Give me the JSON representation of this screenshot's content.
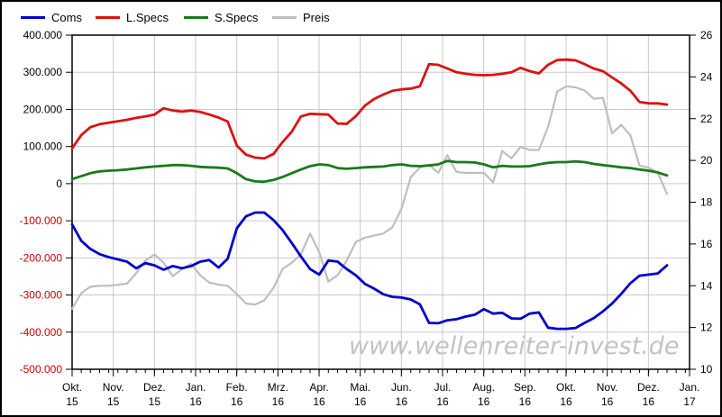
{
  "watermark": "www.wellenreiter-invest.de",
  "legend": {
    "items": [
      {
        "label": "Coms",
        "color": "#0000cd"
      },
      {
        "label": "L.Specs",
        "color": "#dd1111"
      },
      {
        "label": "S.Specs",
        "color": "#1a7a1a"
      },
      {
        "label": "Preis",
        "color": "#bebebe"
      }
    ]
  },
  "chart_data": {
    "type": "line",
    "title": "",
    "grid": true,
    "legend_position": "top",
    "left_axis": {
      "labels": [
        "400.000",
        "300.000",
        "200.000",
        "100.000",
        "0",
        "-100.000",
        "-200.000",
        "-300.000",
        "-400.000",
        "-500.000"
      ],
      "max": 400000,
      "min": -500000,
      "positive_label_color": "#000000",
      "negative_label_color": "#cc0000"
    },
    "right_axis": {
      "labels": [
        "26",
        "24",
        "22",
        "20",
        "18",
        "16",
        "14",
        "12",
        "10"
      ],
      "max": 26,
      "min": 10,
      "label_color": "#000000"
    },
    "x_axis": {
      "months": [
        {
          "month": "Okt.",
          "year": "15"
        },
        {
          "month": "Nov.",
          "year": "15"
        },
        {
          "month": "Dez.",
          "year": "15"
        },
        {
          "month": "Jan.",
          "year": "16"
        },
        {
          "month": "Feb.",
          "year": "16"
        },
        {
          "month": "Mrz.",
          "year": "16"
        },
        {
          "month": "Apr.",
          "year": "16"
        },
        {
          "month": "Mai.",
          "year": "16"
        },
        {
          "month": "Jun.",
          "year": "16"
        },
        {
          "month": "Jul.",
          "year": "16"
        },
        {
          "month": "Aug.",
          "year": "16"
        },
        {
          "month": "Sep.",
          "year": "16"
        },
        {
          "month": "Okt.",
          "year": "16"
        },
        {
          "month": "Nov.",
          "year": "16"
        },
        {
          "month": "Dez.",
          "year": "16"
        },
        {
          "month": "Jan.",
          "year": "17"
        }
      ],
      "tick_interval": "weekly"
    },
    "series": [
      {
        "name": "Preis",
        "axis": "right",
        "color": "#bebebe",
        "width": 2.2,
        "values": [
          12.9,
          13.65,
          13.95,
          14.0,
          14.0,
          14.05,
          14.1,
          14.6,
          15.2,
          15.5,
          15.1,
          14.45,
          14.8,
          15.05,
          14.5,
          14.15,
          14.05,
          14.0,
          13.6,
          13.15,
          13.1,
          13.3,
          13.9,
          14.8,
          15.1,
          15.5,
          16.5,
          15.6,
          14.2,
          14.5,
          15.2,
          16.1,
          16.3,
          16.4,
          16.5,
          16.8,
          17.7,
          19.2,
          19.65,
          19.8,
          19.4,
          20.25,
          19.45,
          19.4,
          19.4,
          19.4,
          18.95,
          20.45,
          20.1,
          20.65,
          20.5,
          20.5,
          21.6,
          23.3,
          23.55,
          23.5,
          23.35,
          22.95,
          23.0,
          21.3,
          21.7,
          21.2,
          19.75,
          19.65,
          19.4,
          18.4
        ]
      },
      {
        "name": "L.Specs",
        "axis": "left",
        "color": "#dd1111",
        "width": 2.8,
        "values": [
          95000,
          131000,
          152000,
          160000,
          164000,
          168000,
          172000,
          177000,
          181000,
          186000,
          203000,
          197000,
          194000,
          197000,
          193000,
          186000,
          178000,
          167000,
          102000,
          78000,
          70000,
          68000,
          80000,
          112000,
          140000,
          181000,
          188000,
          187000,
          186000,
          162000,
          161000,
          182000,
          210000,
          228000,
          240000,
          250000,
          254000,
          256000,
          262000,
          322000,
          320000,
          310000,
          300000,
          296000,
          293000,
          292000,
          293000,
          296000,
          300000,
          312000,
          303000,
          297000,
          320000,
          333000,
          334000,
          332000,
          322000,
          310000,
          303000,
          286000,
          270000,
          250000,
          220000,
          216000,
          216000,
          213000
        ]
      },
      {
        "name": "S.Specs",
        "axis": "left",
        "color": "#1a7a1a",
        "width": 2.8,
        "values": [
          12000,
          20000,
          28000,
          33000,
          35000,
          36000,
          38000,
          41000,
          44000,
          46000,
          48000,
          50000,
          50000,
          48000,
          45000,
          44000,
          43000,
          41000,
          28000,
          12000,
          6000,
          5000,
          10000,
          18000,
          28000,
          38000,
          47000,
          52000,
          50000,
          42000,
          40000,
          42000,
          44000,
          45000,
          46000,
          50000,
          52000,
          48000,
          47000,
          49000,
          52000,
          61000,
          58000,
          58000,
          57000,
          52000,
          44000,
          48000,
          46000,
          46000,
          47000,
          52000,
          56000,
          58000,
          58000,
          60000,
          58000,
          53000,
          50000,
          47000,
          44000,
          42000,
          38000,
          35000,
          30000,
          22000
        ]
      },
      {
        "name": "Coms",
        "axis": "left",
        "color": "#0000cd",
        "width": 2.8,
        "values": [
          -110000,
          -154000,
          -176000,
          -190000,
          -198000,
          -204000,
          -210000,
          -228000,
          -214000,
          -220000,
          -232000,
          -222000,
          -228000,
          -222000,
          -210000,
          -206000,
          -226000,
          -202000,
          -120000,
          -88000,
          -78000,
          -78000,
          -98000,
          -125000,
          -160000,
          -196000,
          -230000,
          -245000,
          -207000,
          -210000,
          -230000,
          -247000,
          -270000,
          -283000,
          -298000,
          -305000,
          -307000,
          -312000,
          -325000,
          -375000,
          -376000,
          -368000,
          -365000,
          -358000,
          -353000,
          -338000,
          -350000,
          -348000,
          -363000,
          -364000,
          -350000,
          -347000,
          -388000,
          -391000,
          -391000,
          -389000,
          -375000,
          -362000,
          -344000,
          -323000,
          -297000,
          -268000,
          -248000,
          -245000,
          -242000,
          -220000
        ]
      }
    ]
  }
}
